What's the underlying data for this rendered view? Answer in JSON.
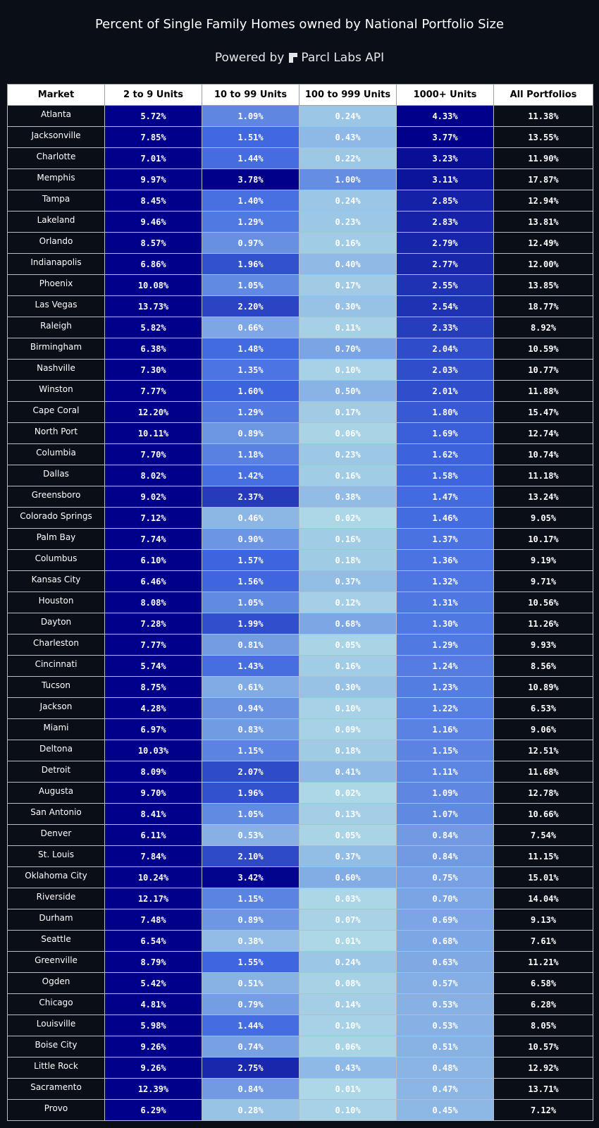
{
  "header": {
    "title": "Percent of Single Family Homes owned by National Portfolio Size",
    "powered_by": "Powered by",
    "brand": "Parcl Labs API"
  },
  "chart_data": {
    "type": "table",
    "title": "Percent of Single Family Homes owned by National Portfolio Size",
    "columns": [
      "Market",
      "2 to 9 Units",
      "10 to 99 Units",
      "100 to 999 Units",
      "1000+ Units",
      "All Portfolios"
    ],
    "rows": [
      [
        "Atlanta",
        "5.72%",
        "1.09%",
        "0.24%",
        "4.33%",
        "11.38%"
      ],
      [
        "Jacksonville",
        "7.85%",
        "1.51%",
        "0.43%",
        "3.77%",
        "13.55%"
      ],
      [
        "Charlotte",
        "7.01%",
        "1.44%",
        "0.22%",
        "3.23%",
        "11.90%"
      ],
      [
        "Memphis",
        "9.97%",
        "3.78%",
        "1.00%",
        "3.11%",
        "17.87%"
      ],
      [
        "Tampa",
        "8.45%",
        "1.40%",
        "0.24%",
        "2.85%",
        "12.94%"
      ],
      [
        "Lakeland",
        "9.46%",
        "1.29%",
        "0.23%",
        "2.83%",
        "13.81%"
      ],
      [
        "Orlando",
        "8.57%",
        "0.97%",
        "0.16%",
        "2.79%",
        "12.49%"
      ],
      [
        "Indianapolis",
        "6.86%",
        "1.96%",
        "0.40%",
        "2.77%",
        "12.00%"
      ],
      [
        "Phoenix",
        "10.08%",
        "1.05%",
        "0.17%",
        "2.55%",
        "13.85%"
      ],
      [
        "Las Vegas",
        "13.73%",
        "2.20%",
        "0.30%",
        "2.54%",
        "18.77%"
      ],
      [
        "Raleigh",
        "5.82%",
        "0.66%",
        "0.11%",
        "2.33%",
        "8.92%"
      ],
      [
        "Birmingham",
        "6.38%",
        "1.48%",
        "0.70%",
        "2.04%",
        "10.59%"
      ],
      [
        "Nashville",
        "7.30%",
        "1.35%",
        "0.10%",
        "2.03%",
        "10.77%"
      ],
      [
        "Winston",
        "7.77%",
        "1.60%",
        "0.50%",
        "2.01%",
        "11.88%"
      ],
      [
        "Cape Coral",
        "12.20%",
        "1.29%",
        "0.17%",
        "1.80%",
        "15.47%"
      ],
      [
        "North Port",
        "10.11%",
        "0.89%",
        "0.06%",
        "1.69%",
        "12.74%"
      ],
      [
        "Columbia",
        "7.70%",
        "1.18%",
        "0.23%",
        "1.62%",
        "10.74%"
      ],
      [
        "Dallas",
        "8.02%",
        "1.42%",
        "0.16%",
        "1.58%",
        "11.18%"
      ],
      [
        "Greensboro",
        "9.02%",
        "2.37%",
        "0.38%",
        "1.47%",
        "13.24%"
      ],
      [
        "Colorado Springs",
        "7.12%",
        "0.46%",
        "0.02%",
        "1.46%",
        "9.05%"
      ],
      [
        "Palm Bay",
        "7.74%",
        "0.90%",
        "0.16%",
        "1.37%",
        "10.17%"
      ],
      [
        "Columbus",
        "6.10%",
        "1.57%",
        "0.18%",
        "1.36%",
        "9.19%"
      ],
      [
        "Kansas City",
        "6.46%",
        "1.56%",
        "0.37%",
        "1.32%",
        "9.71%"
      ],
      [
        "Houston",
        "8.08%",
        "1.05%",
        "0.12%",
        "1.31%",
        "10.56%"
      ],
      [
        "Dayton",
        "7.28%",
        "1.99%",
        "0.68%",
        "1.30%",
        "11.26%"
      ],
      [
        "Charleston",
        "7.77%",
        "0.81%",
        "0.05%",
        "1.29%",
        "9.93%"
      ],
      [
        "Cincinnati",
        "5.74%",
        "1.43%",
        "0.16%",
        "1.24%",
        "8.56%"
      ],
      [
        "Tucson",
        "8.75%",
        "0.61%",
        "0.30%",
        "1.23%",
        "10.89%"
      ],
      [
        "Jackson",
        "4.28%",
        "0.94%",
        "0.10%",
        "1.22%",
        "6.53%"
      ],
      [
        "Miami",
        "6.97%",
        "0.83%",
        "0.09%",
        "1.16%",
        "9.06%"
      ],
      [
        "Deltona",
        "10.03%",
        "1.15%",
        "0.18%",
        "1.15%",
        "12.51%"
      ],
      [
        "Detroit",
        "8.09%",
        "2.07%",
        "0.41%",
        "1.11%",
        "11.68%"
      ],
      [
        "Augusta",
        "9.70%",
        "1.96%",
        "0.02%",
        "1.09%",
        "12.78%"
      ],
      [
        "San Antonio",
        "8.41%",
        "1.05%",
        "0.13%",
        "1.07%",
        "10.66%"
      ],
      [
        "Denver",
        "6.11%",
        "0.53%",
        "0.05%",
        "0.84%",
        "7.54%"
      ],
      [
        "St. Louis",
        "7.84%",
        "2.10%",
        "0.37%",
        "0.84%",
        "11.15%"
      ],
      [
        "Oklahoma City",
        "10.24%",
        "3.42%",
        "0.60%",
        "0.75%",
        "15.01%"
      ],
      [
        "Riverside",
        "12.17%",
        "1.15%",
        "0.03%",
        "0.70%",
        "14.04%"
      ],
      [
        "Durham",
        "7.48%",
        "0.89%",
        "0.07%",
        "0.69%",
        "9.13%"
      ],
      [
        "Seattle",
        "6.54%",
        "0.38%",
        "0.01%",
        "0.68%",
        "7.61%"
      ],
      [
        "Greenville",
        "8.79%",
        "1.55%",
        "0.24%",
        "0.63%",
        "11.21%"
      ],
      [
        "Ogden",
        "5.42%",
        "0.51%",
        "0.08%",
        "0.57%",
        "6.58%"
      ],
      [
        "Chicago",
        "4.81%",
        "0.79%",
        "0.14%",
        "0.53%",
        "6.28%"
      ],
      [
        "Louisville",
        "5.98%",
        "1.44%",
        "0.10%",
        "0.53%",
        "8.05%"
      ],
      [
        "Boise City",
        "9.26%",
        "0.74%",
        "0.06%",
        "0.51%",
        "10.57%"
      ],
      [
        "Little Rock",
        "9.26%",
        "2.75%",
        "0.43%",
        "0.48%",
        "12.92%"
      ],
      [
        "Sacramento",
        "12.39%",
        "0.84%",
        "0.01%",
        "0.47%",
        "13.71%"
      ],
      [
        "Provo",
        "6.29%",
        "0.28%",
        "0.10%",
        "0.45%",
        "7.12%"
      ]
    ],
    "colorscale": {
      "low": "#add8e6",
      "mid": "#4169e1",
      "high": "#00008b",
      "domain": [
        0,
        1.5,
        3.5
      ]
    }
  }
}
